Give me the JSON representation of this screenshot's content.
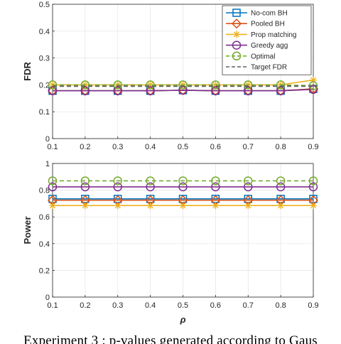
{
  "chart_data": [
    {
      "type": "line",
      "ylabel": "FDR",
      "xlabel": "",
      "x": [
        0.1,
        0.2,
        0.3,
        0.4,
        0.5,
        0.6,
        0.7,
        0.8,
        0.9
      ],
      "xlim": [
        0.1,
        0.9
      ],
      "ylim": [
        0,
        0.5
      ],
      "xticks": [
        "0.1",
        "0.2",
        "0.3",
        "0.4",
        "0.5",
        "0.6",
        "0.7",
        "0.8",
        "0.9"
      ],
      "yticks": [
        "0",
        "0.1",
        "0.2",
        "0.3",
        "0.4",
        "0.5"
      ],
      "grid": true,
      "legend_position": "top-right",
      "series": [
        {
          "name": "No-com BH",
          "color": "#0072BD",
          "marker": "square",
          "dash": "solid",
          "values": [
            0.178,
            0.178,
            0.178,
            0.178,
            0.18,
            0.178,
            0.178,
            0.178,
            0.185
          ]
        },
        {
          "name": "Pooled BH",
          "color": "#D95319",
          "marker": "diamond",
          "dash": "solid",
          "values": [
            0.178,
            0.178,
            0.178,
            0.178,
            0.18,
            0.178,
            0.178,
            0.178,
            0.185
          ]
        },
        {
          "name": "Prop matching",
          "color": "#EDB120",
          "marker": "star",
          "dash": "solid",
          "values": [
            0.2,
            0.2,
            0.2,
            0.2,
            0.2,
            0.2,
            0.2,
            0.2,
            0.218
          ]
        },
        {
          "name": "Greedy agg",
          "color": "#7E2F8E",
          "marker": "circle",
          "dash": "solid",
          "values": [
            0.178,
            0.178,
            0.178,
            0.178,
            0.18,
            0.178,
            0.178,
            0.178,
            0.183
          ]
        },
        {
          "name": "Optimal",
          "color": "#77AC30",
          "marker": "circle",
          "dash": "dashed",
          "values": [
            0.2,
            0.2,
            0.2,
            0.2,
            0.2,
            0.2,
            0.2,
            0.2,
            0.197
          ]
        },
        {
          "name": "Target FDR",
          "color": "#606060",
          "marker": "none",
          "dash": "dashed",
          "values": [
            0.195,
            0.195,
            0.195,
            0.195,
            0.195,
            0.195,
            0.195,
            0.195,
            0.195
          ]
        }
      ]
    },
    {
      "type": "line",
      "ylabel": "Power",
      "xlabel": "ρ",
      "x": [
        0.1,
        0.2,
        0.3,
        0.4,
        0.5,
        0.6,
        0.7,
        0.8,
        0.9
      ],
      "xlim": [
        0.1,
        0.9
      ],
      "ylim": [
        0,
        1
      ],
      "xticks": [
        "0.1",
        "0.2",
        "0.3",
        "0.4",
        "0.5",
        "0.6",
        "0.7",
        "0.8",
        "0.9"
      ],
      "yticks": [
        "0",
        "0.2",
        "0.4",
        "0.6",
        "0.8",
        "1"
      ],
      "grid": true,
      "series": [
        {
          "name": "No-com BH",
          "color": "#0072BD",
          "marker": "square",
          "dash": "solid",
          "values": [
            0.735,
            0.735,
            0.735,
            0.735,
            0.735,
            0.735,
            0.735,
            0.735,
            0.735
          ]
        },
        {
          "name": "Pooled BH",
          "color": "#D95319",
          "marker": "diamond",
          "dash": "solid",
          "values": [
            0.725,
            0.725,
            0.725,
            0.725,
            0.725,
            0.725,
            0.725,
            0.725,
            0.725
          ]
        },
        {
          "name": "Prop matching",
          "color": "#EDB120",
          "marker": "star",
          "dash": "solid",
          "values": [
            0.685,
            0.685,
            0.685,
            0.685,
            0.685,
            0.685,
            0.685,
            0.685,
            0.685
          ]
        },
        {
          "name": "Greedy agg",
          "color": "#7E2F8E",
          "marker": "circle",
          "dash": "solid",
          "values": [
            0.825,
            0.825,
            0.825,
            0.825,
            0.825,
            0.825,
            0.825,
            0.825,
            0.825
          ]
        },
        {
          "name": "Optimal",
          "color": "#77AC30",
          "marker": "circle",
          "dash": "dashed",
          "values": [
            0.87,
            0.87,
            0.87,
            0.87,
            0.87,
            0.87,
            0.87,
            0.87,
            0.87
          ]
        }
      ]
    }
  ],
  "caption": "Experiment 3 : p-values generated according to Gaus"
}
